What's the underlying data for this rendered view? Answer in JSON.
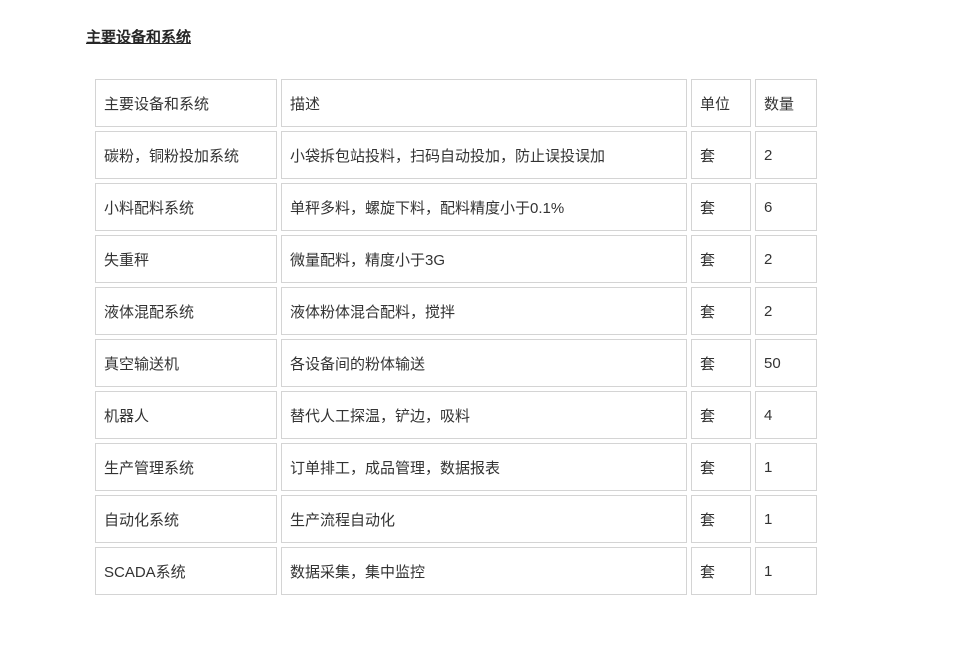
{
  "page": {
    "title": "主要设备和系统"
  },
  "table": {
    "columns": [
      "主要设备和系统",
      "描述",
      "单位",
      "数量"
    ],
    "rows": [
      [
        "碳粉，铜粉投加系统",
        "小袋拆包站投料，扫码自动投加，防止误投误加",
        "套",
        "2"
      ],
      [
        "小料配料系统",
        "单秤多料，螺旋下料，配料精度小于0.1%",
        "套",
        "6"
      ],
      [
        "失重秤",
        "微量配料，精度小于3G",
        "套",
        "2"
      ],
      [
        "液体混配系统",
        "液体粉体混合配料，搅拌",
        "套",
        "2"
      ],
      [
        "真空输送机",
        "各设备间的粉体输送",
        "套",
        "50"
      ],
      [
        "机器人",
        "替代人工探温，铲边，吸料",
        "套",
        "4"
      ],
      [
        "生产管理系统",
        "订单排工，成品管理，数据报表",
        "套",
        "1"
      ],
      [
        "自动化系统",
        "生产流程自动化",
        "套",
        "1"
      ],
      [
        "SCADA系统",
        "数据采集，集中监控",
        "套",
        "1"
      ]
    ]
  },
  "colors": {
    "border": "#d4d4d4",
    "text": "#333333",
    "title": "#262626",
    "background": "#ffffff"
  }
}
